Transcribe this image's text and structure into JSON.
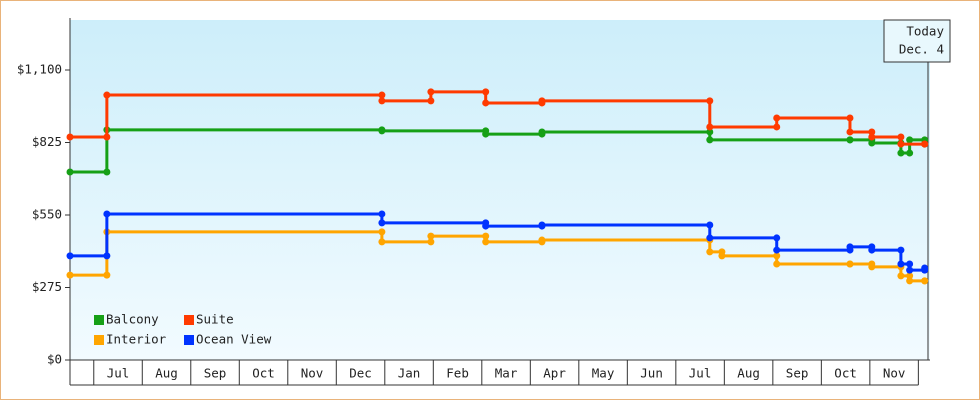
{
  "chart_data": {
    "type": "step",
    "annotation": [
      "Today",
      "Dec. 4"
    ],
    "categories": [
      "Jul",
      "Aug",
      "Sep",
      "Oct",
      "Nov",
      "Dec",
      "Jan",
      "Feb",
      "Mar",
      "Apr",
      "May",
      "Jun",
      "Jul",
      "Aug",
      "Sep",
      "Oct",
      "Nov"
    ],
    "xlim": [
      -0.49,
      17.24
    ],
    "ylim": [
      0,
      1100
    ],
    "yticks": [
      {
        "value": 0,
        "label": "$0"
      },
      {
        "value": 275,
        "label": "$275"
      },
      {
        "value": 550,
        "label": "$550"
      },
      {
        "value": 825,
        "label": "$825"
      },
      {
        "value": 1100,
        "label": "$1,100"
      }
    ],
    "legend": "lower left",
    "series": [
      {
        "name": "Balcony",
        "color": "#16a016",
        "x": [
          -0.49,
          0.27,
          5.94,
          8.08,
          9.24,
          12.7,
          15.59,
          16.04,
          16.64,
          16.82,
          17.13
        ],
        "values": [
          713,
          873,
          869,
          857,
          865,
          835,
          835,
          823,
          785,
          835,
          819
        ]
      },
      {
        "name": "Suite",
        "color": "#ff3a00",
        "x": [
          -0.49,
          0.27,
          5.94,
          6.95,
          8.08,
          9.24,
          12.7,
          14.08,
          15.59,
          16.04,
          16.64,
          17.13
        ],
        "values": [
          846,
          1005,
          983,
          1017,
          975,
          983,
          884,
          918,
          865,
          846,
          819,
          819
        ]
      },
      {
        "name": "Interior",
        "color": "#ffa500",
        "x": [
          -0.49,
          0.27,
          5.94,
          6.95,
          8.08,
          9.24,
          12.7,
          12.95,
          14.08,
          15.59,
          16.04,
          16.64,
          16.82,
          17.13
        ],
        "values": [
          322,
          486,
          448,
          470,
          448,
          455,
          410,
          395,
          364,
          364,
          353,
          319,
          300,
          300
        ]
      },
      {
        "name": "Ocean View",
        "color": "#0033ff",
        "x": [
          -0.49,
          0.27,
          5.94,
          8.08,
          9.24,
          12.7,
          14.08,
          15.59,
          16.04,
          16.64,
          16.82,
          17.13
        ],
        "values": [
          395,
          554,
          520,
          508,
          512,
          463,
          417,
          429,
          417,
          364,
          341,
          349
        ]
      }
    ]
  }
}
